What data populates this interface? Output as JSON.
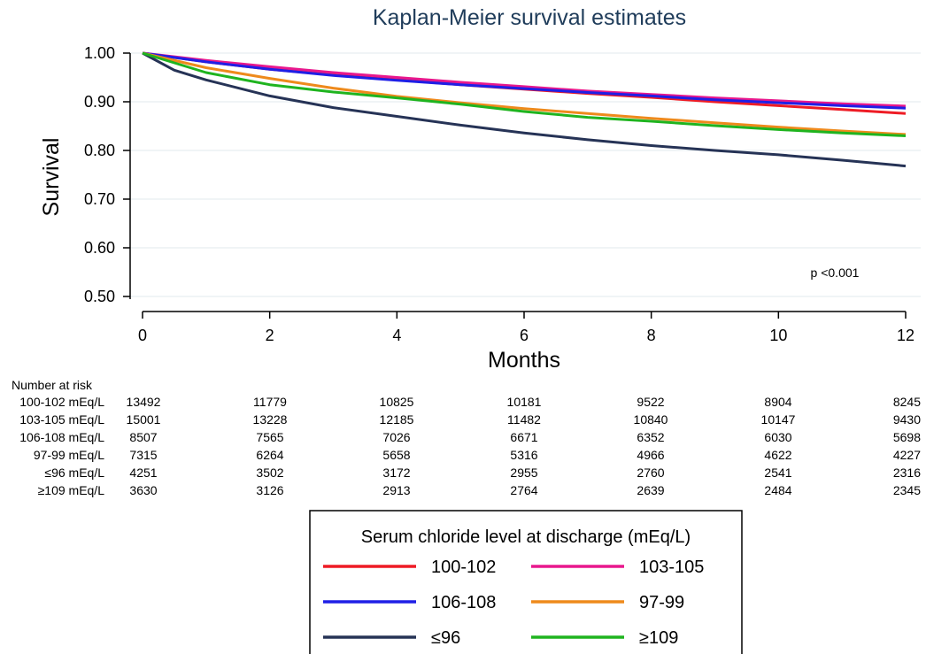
{
  "chart_data": {
    "type": "line",
    "title": "Kaplan-Meier survival estimates",
    "xlabel": "Months",
    "ylabel": "Survival",
    "xlim": [
      0,
      12
    ],
    "ylim": [
      0.5,
      1.0
    ],
    "x_ticks": [
      "0",
      "2",
      "4",
      "6",
      "8",
      "10",
      "12"
    ],
    "y_ticks": [
      "0.50",
      "0.60",
      "0.70",
      "0.80",
      "0.90",
      "1.00"
    ],
    "grid": true,
    "annotation": "p <0.001",
    "legend": {
      "title": "Serum chloride level at discharge (mEq/L)",
      "placement": "bottom"
    },
    "series": [
      {
        "name": "100-102",
        "color": "#ee1c25",
        "x": [
          0,
          1,
          2,
          3,
          4,
          5,
          6,
          7,
          8,
          9,
          10,
          11,
          12
        ],
        "y": [
          1.0,
          0.982,
          0.967,
          0.955,
          0.945,
          0.935,
          0.926,
          0.917,
          0.909,
          0.9,
          0.892,
          0.884,
          0.876
        ]
      },
      {
        "name": "103-105",
        "color": "#e8188d",
        "x": [
          0,
          1,
          2,
          3,
          4,
          5,
          6,
          7,
          8,
          9,
          10,
          11,
          12
        ],
        "y": [
          1.0,
          0.985,
          0.972,
          0.96,
          0.95,
          0.94,
          0.931,
          0.922,
          0.915,
          0.908,
          0.902,
          0.896,
          0.891
        ]
      },
      {
        "name": "106-108",
        "color": "#1f1fe6",
        "x": [
          0,
          1,
          2,
          3,
          4,
          5,
          6,
          7,
          8,
          9,
          10,
          11,
          12
        ],
        "y": [
          1.0,
          0.982,
          0.967,
          0.954,
          0.944,
          0.935,
          0.927,
          0.919,
          0.912,
          0.904,
          0.898,
          0.892,
          0.887
        ]
      },
      {
        "name": "97-99",
        "color": "#ee8a1c",
        "x": [
          0,
          1,
          2,
          3,
          4,
          5,
          6,
          7,
          8,
          9,
          10,
          11,
          12
        ],
        "y": [
          1.0,
          0.97,
          0.948,
          0.928,
          0.911,
          0.898,
          0.886,
          0.876,
          0.866,
          0.857,
          0.848,
          0.84,
          0.833
        ]
      },
      {
        "name": "≤96",
        "color": "#263356",
        "x": [
          0,
          0.5,
          1,
          2,
          3,
          4,
          5,
          6,
          7,
          8,
          9,
          10,
          11,
          12
        ],
        "y": [
          1.0,
          0.965,
          0.945,
          0.912,
          0.888,
          0.87,
          0.852,
          0.836,
          0.822,
          0.81,
          0.8,
          0.791,
          0.78,
          0.768
        ]
      },
      {
        "name": "≥109",
        "color": "#1fb41f",
        "x": [
          0,
          1,
          2,
          3,
          4,
          5,
          6,
          7,
          8,
          9,
          10,
          11,
          12
        ],
        "y": [
          1.0,
          0.96,
          0.935,
          0.92,
          0.908,
          0.895,
          0.88,
          0.868,
          0.86,
          0.851,
          0.843,
          0.836,
          0.83
        ]
      }
    ],
    "number_at_risk": {
      "label": "Number at risk",
      "rows": [
        {
          "label": "100-102 mEq/L",
          "values": [
            "13492",
            "11779",
            "10825",
            "10181",
            "9522",
            "8904",
            "8245"
          ]
        },
        {
          "label": "103-105 mEq/L",
          "values": [
            "15001",
            "13228",
            "12185",
            "11482",
            "10840",
            "10147",
            "9430"
          ]
        },
        {
          "label": "106-108 mEq/L",
          "values": [
            "8507",
            "7565",
            "7026",
            "6671",
            "6352",
            "6030",
            "5698"
          ]
        },
        {
          "label": "97-99 mEq/L",
          "values": [
            "7315",
            "6264",
            "5658",
            "5316",
            "4966",
            "4622",
            "4227"
          ]
        },
        {
          "label": "≤96 mEq/L",
          "values": [
            "4251",
            "3502",
            "3172",
            "2955",
            "2760",
            "2541",
            "2316"
          ]
        },
        {
          "label": "≥109 mEq/L",
          "values": [
            "3630",
            "3126",
            "2913",
            "2764",
            "2639",
            "2484",
            "2345"
          ]
        }
      ]
    }
  }
}
